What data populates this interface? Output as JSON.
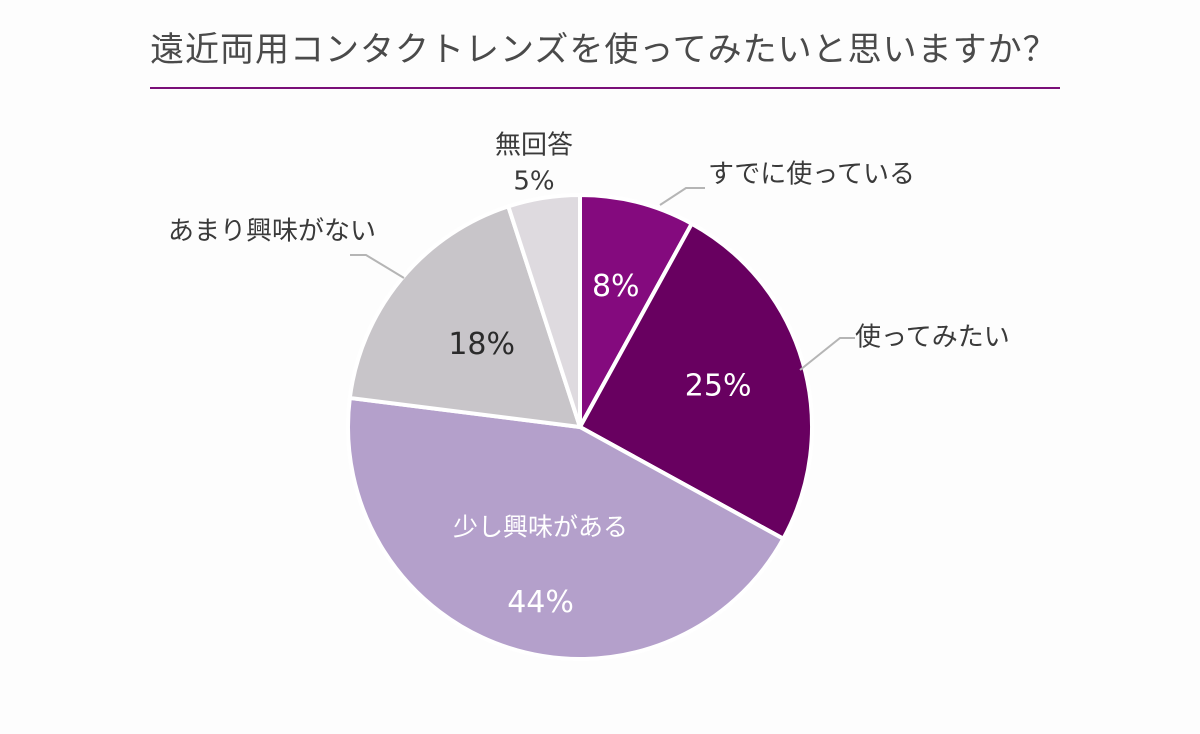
{
  "title": "遠近両用コンタクトレンズを使ってみたいと思いますか？",
  "colors": {
    "title_rule": "#7a0f78",
    "title_text": "#4a4a4a",
    "label_text": "#3a3a3a",
    "leader_line": "#b5b5b5"
  },
  "chart_data": {
    "type": "pie",
    "title": "遠近両用コンタクトレンズを使ってみたいと思いますか？",
    "start_angle_deg": 0,
    "direction": "clockwise",
    "slices": [
      {
        "label": "すでに使っている",
        "value": 8,
        "value_label": "8%",
        "color": "#840a7e",
        "text_color": "#ffffff"
      },
      {
        "label": "使ってみたい",
        "value": 25,
        "value_label": "25%",
        "color": "#680060",
        "text_color": "#ffffff"
      },
      {
        "label": "少し興味がある",
        "value": 44,
        "value_label": "44%",
        "color": "#b4a0cb",
        "text_color": "#ffffff"
      },
      {
        "label": "あまり興味がない",
        "value": 18,
        "value_label": "18%",
        "color": "#c8c5c9",
        "text_color": "#2b2b2b"
      },
      {
        "label": "無回答",
        "value": 5,
        "value_label": "5%",
        "color": "#dedadf",
        "text_color": "#3a3a3a"
      }
    ]
  }
}
